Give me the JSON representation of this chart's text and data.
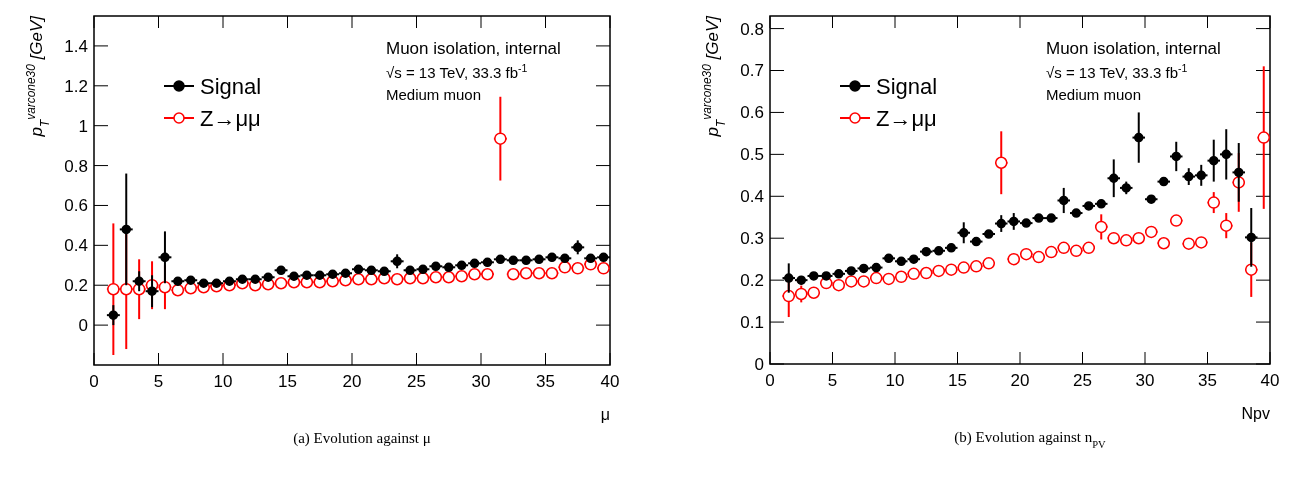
{
  "chart_data": [
    {
      "type": "scatter",
      "xlabel": "μ",
      "ylabel": "p$_{T}$$^{varcone30}$ [GeV]",
      "xlim": [
        0,
        40
      ],
      "ylim": [
        -0.2,
        1.55
      ],
      "xticks": [
        0,
        5,
        10,
        15,
        20,
        25,
        30,
        35,
        40
      ],
      "yticks": [
        0,
        0.2,
        0.4,
        0.6,
        0.8,
        1,
        1.2,
        1.4
      ],
      "legend": "top left",
      "marker": "circle",
      "grid": false,
      "x": [
        1.5,
        2.5,
        3.5,
        4.5,
        5.5,
        6.5,
        7.5,
        8.5,
        9.5,
        10.5,
        11.5,
        12.5,
        13.5,
        14.5,
        15.5,
        16.5,
        17.5,
        18.5,
        19.5,
        20.5,
        21.5,
        22.5,
        23.5,
        24.5,
        25.5,
        26.5,
        27.5,
        28.5,
        29.5,
        30.5,
        31.5,
        32.5,
        33.5,
        34.5,
        35.5,
        36.5,
        37.5,
        38.5,
        39.5
      ],
      "series": [
        {
          "name": "Signal",
          "color": "#000000",
          "values": [
            0.05,
            0.48,
            0.22,
            0.17,
            0.34,
            0.22,
            0.225,
            0.21,
            0.21,
            0.22,
            0.23,
            0.23,
            0.24,
            0.275,
            0.245,
            0.25,
            0.25,
            0.255,
            0.26,
            0.28,
            0.275,
            0.27,
            0.32,
            0.275,
            0.28,
            0.295,
            0.29,
            0.3,
            0.31,
            0.315,
            0.33,
            0.325,
            0.325,
            0.33,
            0.34,
            0.335,
            0.39,
            0.335,
            0.34
          ],
          "errors": [
            0.05,
            0.28,
            0.05,
            0.08,
            0.13,
            0.02,
            0.01,
            null,
            null,
            null,
            null,
            null,
            null,
            0.02,
            null,
            null,
            null,
            null,
            null,
            null,
            null,
            null,
            0.035,
            null,
            null,
            null,
            null,
            null,
            null,
            null,
            null,
            null,
            null,
            null,
            null,
            null,
            0.035,
            null,
            null
          ],
          "xerrors": [
            0.5,
            0.5,
            0.5,
            0.5,
            0.5,
            0.5,
            0.5,
            0.5,
            0.5,
            0.5,
            0.5,
            0.5,
            0.5,
            0.5,
            0.5,
            0.5,
            0.5,
            0.5,
            0.5,
            0.5,
            0.5,
            0.5,
            0.5,
            0.5,
            0.5,
            0.5,
            0.5,
            0.5,
            0.5,
            0.5,
            0.5,
            0.5,
            0.5,
            0.5,
            0.5,
            0.5,
            0.5,
            0.5,
            0.5
          ]
        },
        {
          "name": "Z→μμ",
          "color": "#ff0000",
          "values": [
            0.18,
            0.18,
            0.18,
            0.2,
            0.19,
            0.175,
            0.185,
            0.19,
            0.195,
            0.2,
            0.21,
            0.2,
            0.205,
            0.21,
            0.215,
            0.215,
            0.215,
            0.22,
            0.225,
            0.23,
            0.23,
            0.235,
            0.23,
            0.235,
            0.235,
            0.24,
            0.24,
            0.245,
            0.255,
            0.255,
            0.935,
            0.255,
            0.26,
            0.26,
            0.26,
            0.29,
            0.285,
            0.305,
            0.285
          ],
          "errors": [
            0.33,
            0.3,
            0.15,
            0.12,
            0.11,
            null,
            null,
            null,
            null,
            null,
            null,
            null,
            null,
            null,
            null,
            null,
            null,
            null,
            null,
            null,
            null,
            null,
            null,
            null,
            null,
            null,
            null,
            null,
            null,
            null,
            0.21,
            null,
            null,
            null,
            null,
            null,
            null,
            null,
            null
          ],
          "xerrors": [
            0.5,
            0.5,
            0.5,
            0.5,
            0.5,
            0.5,
            0.5,
            0.5,
            0.5,
            0.5,
            0.5,
            0.5,
            0.5,
            0.5,
            0.5,
            0.5,
            0.5,
            0.5,
            0.5,
            0.5,
            0.5,
            0.5,
            0.5,
            0.5,
            0.5,
            0.5,
            0.5,
            0.5,
            0.5,
            0.5,
            0.5,
            0.5,
            0.5,
            0.5,
            0.5,
            0.5,
            0.5,
            0.5,
            0.5
          ]
        }
      ],
      "annotations": [
        "Muon isolation, internal",
        "√s = 13 TeV, 33.3 fb$^{-1}$",
        "Medium muon",
        "(a) Evolution against μ"
      ]
    },
    {
      "type": "scatter",
      "xlabel": "Npv",
      "ylabel": "p$_{T}$$^{varcone30}$ [GeV]",
      "xlim": [
        0,
        40
      ],
      "ylim": [
        0,
        0.83
      ],
      "xticks": [
        0,
        5,
        10,
        15,
        20,
        25,
        30,
        35,
        40
      ],
      "yticks": [
        0,
        0.1,
        0.2,
        0.3,
        0.4,
        0.5,
        0.6,
        0.7,
        0.8
      ],
      "legend": "top left",
      "marker": "circle",
      "grid": false,
      "x": [
        1.5,
        2.5,
        3.5,
        4.5,
        5.5,
        6.5,
        7.5,
        8.5,
        9.5,
        10.5,
        11.5,
        12.5,
        13.5,
        14.5,
        15.5,
        16.5,
        17.5,
        18.5,
        19.5,
        20.5,
        21.5,
        22.5,
        23.5,
        24.5,
        25.5,
        26.5,
        27.5,
        28.5,
        29.5,
        30.5,
        31.5,
        32.5,
        33.5,
        34.5,
        35.5,
        36.5,
        37.5,
        38.5,
        39.5
      ],
      "series": [
        {
          "name": "Signal",
          "color": "#000000",
          "values": [
            0.205,
            0.2,
            0.21,
            0.21,
            0.215,
            0.222,
            0.228,
            0.23,
            0.252,
            0.245,
            0.25,
            0.268,
            0.27,
            0.277,
            0.313,
            0.292,
            0.31,
            0.335,
            0.34,
            0.336,
            0.348,
            0.348,
            0.39,
            0.36,
            0.377,
            0.382,
            0.443,
            0.42,
            0.54,
            0.393,
            0.435,
            0.495,
            0.447,
            0.45,
            0.485,
            0.5,
            0.457,
            0.302,
            null
          ],
          "errors": [
            0.035,
            0.01,
            null,
            null,
            null,
            null,
            null,
            null,
            null,
            null,
            null,
            null,
            null,
            null,
            0.025,
            null,
            null,
            0.02,
            0.02,
            null,
            null,
            null,
            0.03,
            null,
            null,
            null,
            0.045,
            0.015,
            0.06,
            null,
            null,
            0.035,
            0.02,
            0.025,
            0.05,
            0.06,
            0.07,
            0.07,
            null
          ],
          "xerrors": [
            0.5,
            0.5,
            0.5,
            0.5,
            0.5,
            0.5,
            0.5,
            0.5,
            0.5,
            0.5,
            0.5,
            0.5,
            0.5,
            0.5,
            0.5,
            0.5,
            0.5,
            0.5,
            0.5,
            0.5,
            0.5,
            0.5,
            0.5,
            0.5,
            0.5,
            0.5,
            0.5,
            0.5,
            0.5,
            0.5,
            0.5,
            0.5,
            0.5,
            0.5,
            0.5,
            0.5,
            0.5,
            0.5,
            null
          ]
        },
        {
          "name": "Z→μμ",
          "color": "#ff0000",
          "values": [
            0.162,
            0.167,
            0.17,
            0.193,
            0.188,
            0.197,
            0.197,
            0.205,
            0.203,
            0.208,
            0.215,
            0.217,
            0.222,
            0.225,
            0.23,
            0.233,
            0.24,
            0.48,
            0.25,
            0.262,
            0.255,
            0.267,
            0.277,
            0.27,
            0.277,
            0.327,
            0.3,
            0.295,
            0.3,
            0.315,
            0.288,
            0.342,
            0.287,
            0.29,
            0.385,
            0.33,
            0.433,
            0.225,
            0.54
          ],
          "errors": [
            0.05,
            0.02,
            null,
            null,
            null,
            null,
            null,
            null,
            null,
            null,
            null,
            null,
            null,
            null,
            null,
            null,
            null,
            0.075,
            null,
            null,
            null,
            null,
            null,
            null,
            null,
            0.03,
            null,
            null,
            null,
            null,
            null,
            null,
            null,
            0.01,
            0.025,
            0.03,
            0.07,
            0.065,
            0.17
          ],
          "xerrors": [
            0.5,
            0.5,
            0.5,
            0.5,
            0.5,
            0.5,
            0.5,
            0.5,
            0.5,
            0.5,
            0.5,
            0.5,
            0.5,
            0.5,
            0.5,
            0.5,
            0.5,
            0.5,
            0.5,
            0.5,
            0.5,
            0.5,
            0.5,
            0.5,
            0.5,
            0.5,
            0.5,
            0.5,
            0.5,
            0.5,
            0.5,
            0.5,
            0.5,
            0.5,
            0.5,
            0.5,
            0.5,
            0.5,
            0.5
          ]
        }
      ],
      "annotations": [
        "Muon isolation, internal",
        "√s = 13 TeV, 33.3 fb$^{-1}$",
        "Medium muon",
        "(b) Evolution against n$_{PV}$"
      ]
    }
  ]
}
